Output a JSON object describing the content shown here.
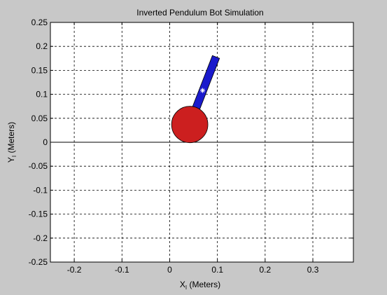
{
  "chart_data": {
    "type": "scatter",
    "title": "Inverted Pendulum Bot Simulation",
    "xlabel": "X",
    "xlabel_subscript": "I",
    "xlabel_units": " (Meters)",
    "ylabel": "Y",
    "ylabel_subscript": "I",
    "ylabel_units": " (Meters)",
    "xlim": [
      -0.25,
      0.385
    ],
    "ylim": [
      -0.25,
      0.25
    ],
    "xticks": [
      -0.2,
      -0.1,
      0,
      0.1,
      0.2,
      0.3
    ],
    "xtick_labels": [
      "-0.2",
      "-0.1",
      "0",
      "0.1",
      "0.2",
      "0.3"
    ],
    "yticks": [
      0.25,
      0.2,
      0.15,
      0.1,
      0.05,
      0,
      -0.05,
      -0.1,
      -0.15,
      -0.2,
      -0.25
    ],
    "ytick_labels": [
      "0.25",
      "0.2",
      "0.15",
      "0.1",
      "0.05",
      "0",
      "-0.05",
      "-0.1",
      "-0.15",
      "-0.2",
      "-0.25"
    ],
    "grid": true,
    "grid_style": "dashed",
    "ground_line_y": 0,
    "wheel": {
      "center": [
        0.042,
        0.037
      ],
      "radius": 0.038,
      "color": "#cc1f1f"
    },
    "pendulum": {
      "base": [
        0.042,
        0.037
      ],
      "tip": [
        0.097,
        0.178
      ],
      "width": 0.016,
      "color": "#1a1acc"
    },
    "center_of_mass": {
      "point": [
        0.069,
        0.108
      ],
      "color": "#ffffff"
    },
    "colors": {
      "figure_background": "#c8c8c8",
      "axes_background": "#ffffff",
      "wheel_edge": "#000000",
      "pendulum_edge": "#000000"
    }
  }
}
